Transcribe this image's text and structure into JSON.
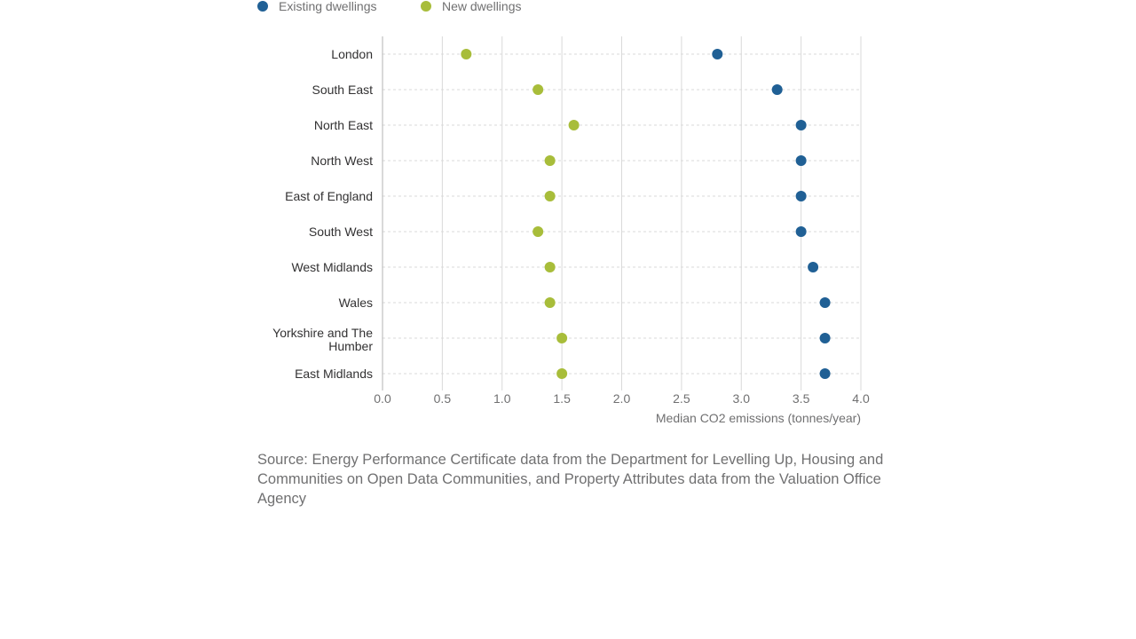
{
  "chart_data": {
    "type": "scatter",
    "orientation": "horizontal-dot-plot",
    "categories": [
      "London",
      "South East",
      "North East",
      "North West",
      "East of England",
      "South West",
      "West Midlands",
      "Wales",
      "Yorkshire and The Humber",
      "East Midlands"
    ],
    "series": [
      {
        "name": "Existing dwellings",
        "color": "#206095",
        "values": [
          2.8,
          3.3,
          3.5,
          3.5,
          3.5,
          3.5,
          3.6,
          3.7,
          3.7,
          3.7
        ]
      },
      {
        "name": "New dwellings",
        "color": "#a8bd3a",
        "values": [
          0.7,
          1.3,
          1.6,
          1.4,
          1.4,
          1.3,
          1.4,
          1.4,
          1.5,
          1.5
        ]
      }
    ],
    "xlabel": "Median CO2 emissions (tonnes/year)",
    "xlim": [
      0,
      4
    ],
    "xticks": [
      "0.0",
      "0.5",
      "1.0",
      "1.5",
      "2.0",
      "2.5",
      "3.0",
      "3.5",
      "4.0"
    ],
    "legend_position": "top-left",
    "grid": true
  },
  "source": "Source: Energy Performance Certificate data from the Department for Levelling Up, Housing and Communities on Open Data Communities, and Property Attributes data from the Valuation Office Agency"
}
